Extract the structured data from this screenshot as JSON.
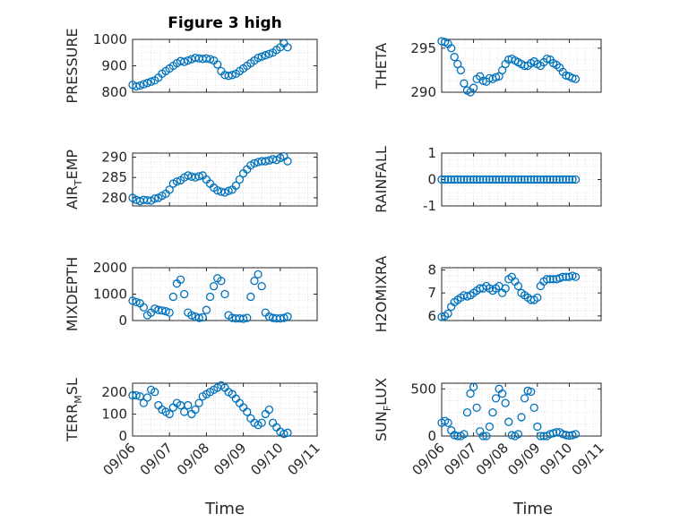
{
  "figure": {
    "title": "Figure 3 high",
    "xlabel": "Time",
    "marker_color": "#0072BD"
  },
  "chart_data": [
    {
      "type": "scatter",
      "ylabel": "PRESSURE",
      "ylim": [
        800,
        1000
      ],
      "yticks": [
        800,
        900,
        1000
      ],
      "xlim": [
        0,
        5
      ],
      "xticks": [
        "09/06",
        "09/07",
        "09/08",
        "09/09",
        "09/10",
        "09/11"
      ],
      "grid": true,
      "show_xticks": false,
      "x": [
        0,
        0.1,
        0.2,
        0.3,
        0.4,
        0.5,
        0.6,
        0.7,
        0.8,
        0.9,
        1.0,
        1.1,
        1.2,
        1.3,
        1.4,
        1.5,
        1.6,
        1.7,
        1.8,
        1.9,
        2.0,
        2.1,
        2.2,
        2.3,
        2.4,
        2.5,
        2.6,
        2.7,
        2.8,
        2.9,
        3.0,
        3.1,
        3.2,
        3.3,
        3.4,
        3.5,
        3.6,
        3.7,
        3.8,
        3.9,
        4.0,
        4.1,
        4.2
      ],
      "y": [
        828,
        822,
        825,
        830,
        835,
        840,
        845,
        855,
        870,
        880,
        890,
        900,
        910,
        918,
        915,
        920,
        925,
        930,
        928,
        926,
        928,
        925,
        920,
        905,
        880,
        865,
        862,
        865,
        870,
        880,
        890,
        900,
        910,
        920,
        930,
        935,
        940,
        945,
        950,
        960,
        970,
        985,
        970
      ]
    },
    {
      "type": "scatter",
      "ylabel": "THETA",
      "ylim": [
        290,
        296
      ],
      "yticks": [
        290,
        295
      ],
      "xlim": [
        0,
        5
      ],
      "xticks": [
        "09/06",
        "09/07",
        "09/08",
        "09/09",
        "09/10",
        "09/11"
      ],
      "grid": true,
      "show_xticks": false,
      "x": [
        0,
        0.1,
        0.2,
        0.3,
        0.4,
        0.5,
        0.6,
        0.7,
        0.8,
        0.9,
        1.0,
        1.1,
        1.2,
        1.3,
        1.4,
        1.5,
        1.6,
        1.7,
        1.8,
        1.9,
        2.0,
        2.1,
        2.2,
        2.3,
        2.4,
        2.5,
        2.6,
        2.7,
        2.8,
        2.9,
        3.0,
        3.1,
        3.2,
        3.3,
        3.4,
        3.5,
        3.6,
        3.7,
        3.8,
        3.9,
        4.0,
        4.1,
        4.2
      ],
      "y": [
        295.8,
        295.7,
        295.5,
        295.0,
        294.0,
        293.2,
        292.5,
        291.0,
        290.2,
        290.0,
        290.5,
        291.5,
        291.8,
        291.3,
        291.2,
        291.6,
        291.5,
        291.7,
        291.8,
        292.5,
        293.2,
        293.7,
        293.8,
        293.6,
        293.4,
        293.2,
        293.0,
        293.0,
        293.3,
        293.5,
        293.2,
        293.0,
        293.4,
        293.8,
        293.7,
        293.3,
        293.1,
        292.8,
        292.3,
        291.9,
        291.8,
        291.6,
        291.5
      ]
    },
    {
      "type": "scatter",
      "ylabel": "AIR_TEMP",
      "ylim": [
        278,
        291
      ],
      "yticks": [
        280,
        285,
        290
      ],
      "xlim": [
        0,
        5
      ],
      "xticks": [
        "09/06",
        "09/07",
        "09/08",
        "09/09",
        "09/10",
        "09/11"
      ],
      "grid": true,
      "show_xticks": false,
      "x": [
        0,
        0.1,
        0.2,
        0.3,
        0.4,
        0.5,
        0.6,
        0.7,
        0.8,
        0.9,
        1.0,
        1.1,
        1.2,
        1.3,
        1.4,
        1.5,
        1.6,
        1.7,
        1.8,
        1.9,
        2.0,
        2.1,
        2.2,
        2.3,
        2.4,
        2.5,
        2.6,
        2.7,
        2.8,
        2.9,
        3.0,
        3.1,
        3.2,
        3.3,
        3.4,
        3.5,
        3.6,
        3.7,
        3.8,
        3.9,
        4.0,
        4.1,
        4.2
      ],
      "y": [
        280.0,
        279.5,
        279.2,
        279.5,
        279.4,
        279.3,
        279.8,
        280.0,
        280.5,
        281.0,
        282.0,
        283.5,
        284.0,
        284.3,
        285.0,
        285.5,
        285.2,
        285.0,
        285.3,
        285.5,
        284.5,
        283.5,
        282.5,
        281.8,
        281.5,
        281.3,
        281.7,
        282.0,
        283.0,
        284.5,
        286.0,
        287.0,
        288.0,
        288.5,
        288.8,
        289.0,
        289.0,
        289.2,
        289.5,
        289.3,
        289.8,
        290.2,
        289.0
      ]
    },
    {
      "type": "scatter",
      "ylabel": "RAINFALL",
      "ylim": [
        -1,
        1
      ],
      "yticks": [
        -1,
        0,
        1
      ],
      "xlim": [
        0,
        5
      ],
      "xticks": [
        "09/06",
        "09/07",
        "09/08",
        "09/09",
        "09/10",
        "09/11"
      ],
      "grid": true,
      "show_xticks": false,
      "x": [
        0,
        0.1,
        0.2,
        0.3,
        0.4,
        0.5,
        0.6,
        0.7,
        0.8,
        0.9,
        1.0,
        1.1,
        1.2,
        1.3,
        1.4,
        1.5,
        1.6,
        1.7,
        1.8,
        1.9,
        2.0,
        2.1,
        2.2,
        2.3,
        2.4,
        2.5,
        2.6,
        2.7,
        2.8,
        2.9,
        3.0,
        3.1,
        3.2,
        3.3,
        3.4,
        3.5,
        3.6,
        3.7,
        3.8,
        3.9,
        4.0,
        4.1,
        4.2
      ],
      "y": [
        0,
        0,
        0,
        0,
        0,
        0,
        0,
        0,
        0,
        0,
        0,
        0,
        0,
        0,
        0,
        0,
        0,
        0,
        0,
        0,
        0,
        0,
        0,
        0,
        0,
        0,
        0,
        0,
        0,
        0,
        0,
        0,
        0,
        0,
        0,
        0,
        0,
        0,
        0,
        0,
        0,
        0,
        0
      ]
    },
    {
      "type": "scatter",
      "ylabel": "MIXDEPTH",
      "ylim": [
        0,
        2000
      ],
      "yticks": [
        0,
        1000,
        2000
      ],
      "xlim": [
        0,
        5
      ],
      "xticks": [
        "09/06",
        "09/07",
        "09/08",
        "09/09",
        "09/10",
        "09/11"
      ],
      "grid": true,
      "show_xticks": false,
      "x": [
        0,
        0.1,
        0.2,
        0.3,
        0.4,
        0.5,
        0.6,
        0.7,
        0.8,
        0.9,
        1.0,
        1.1,
        1.2,
        1.3,
        1.4,
        1.5,
        1.6,
        1.7,
        1.8,
        1.9,
        2.0,
        2.1,
        2.2,
        2.3,
        2.4,
        2.5,
        2.6,
        2.7,
        2.8,
        2.9,
        3.0,
        3.1,
        3.2,
        3.3,
        3.4,
        3.5,
        3.6,
        3.7,
        3.8,
        3.9,
        4.0,
        4.1,
        4.2
      ],
      "y": [
        750,
        700,
        650,
        500,
        200,
        300,
        450,
        400,
        380,
        350,
        300,
        900,
        1400,
        1550,
        1000,
        300,
        200,
        150,
        100,
        120,
        400,
        900,
        1300,
        1600,
        1500,
        1000,
        200,
        100,
        80,
        80,
        70,
        100,
        900,
        1500,
        1750,
        1300,
        300,
        150,
        100,
        80,
        80,
        100,
        150
      ]
    },
    {
      "type": "scatter",
      "ylabel": "H2OMIXRA",
      "ylim": [
        5.8,
        8.1
      ],
      "yticks": [
        6,
        7,
        8
      ],
      "xlim": [
        0,
        5
      ],
      "xticks": [
        "09/06",
        "09/07",
        "09/08",
        "09/09",
        "09/10",
        "09/11"
      ],
      "grid": true,
      "show_xticks": false,
      "x": [
        0,
        0.1,
        0.2,
        0.3,
        0.4,
        0.5,
        0.6,
        0.7,
        0.8,
        0.9,
        1.0,
        1.1,
        1.2,
        1.3,
        1.4,
        1.5,
        1.6,
        1.7,
        1.8,
        1.9,
        2.0,
        2.1,
        2.2,
        2.3,
        2.4,
        2.5,
        2.6,
        2.7,
        2.8,
        2.9,
        3.0,
        3.1,
        3.2,
        3.3,
        3.4,
        3.5,
        3.6,
        3.7,
        3.8,
        3.9,
        4.0,
        4.1,
        4.2
      ],
      "y": [
        5.95,
        6.0,
        6.1,
        6.4,
        6.6,
        6.7,
        6.8,
        6.9,
        6.85,
        6.9,
        7.0,
        7.1,
        7.2,
        7.2,
        7.3,
        7.2,
        7.1,
        7.2,
        7.3,
        7.0,
        7.2,
        7.6,
        7.7,
        7.5,
        7.3,
        7.0,
        6.9,
        6.8,
        6.7,
        6.7,
        6.8,
        7.3,
        7.5,
        7.6,
        7.6,
        7.6,
        7.6,
        7.65,
        7.7,
        7.7,
        7.7,
        7.75,
        7.7
      ]
    },
    {
      "type": "scatter",
      "ylabel": "TERR_MSL",
      "ylim": [
        0,
        240
      ],
      "yticks": [
        0,
        100,
        200
      ],
      "xlim": [
        0,
        5
      ],
      "xticks": [
        "09/06",
        "09/07",
        "09/08",
        "09/09",
        "09/10",
        "09/11"
      ],
      "grid": true,
      "show_xticks": true,
      "x": [
        0,
        0.1,
        0.2,
        0.3,
        0.4,
        0.5,
        0.6,
        0.7,
        0.8,
        0.9,
        1.0,
        1.1,
        1.2,
        1.3,
        1.4,
        1.5,
        1.6,
        1.7,
        1.8,
        1.9,
        2.0,
        2.1,
        2.2,
        2.3,
        2.4,
        2.5,
        2.6,
        2.7,
        2.8,
        2.9,
        3.0,
        3.1,
        3.2,
        3.3,
        3.4,
        3.5,
        3.6,
        3.7,
        3.8,
        3.9,
        4.0,
        4.1,
        4.2
      ],
      "y": [
        185,
        185,
        180,
        150,
        175,
        210,
        200,
        140,
        120,
        110,
        100,
        130,
        150,
        140,
        110,
        140,
        100,
        120,
        150,
        180,
        190,
        200,
        210,
        220,
        230,
        220,
        200,
        190,
        170,
        150,
        130,
        110,
        80,
        60,
        50,
        60,
        100,
        120,
        60,
        40,
        20,
        10,
        15
      ]
    },
    {
      "type": "scatter",
      "ylabel": "SUN_FLUX",
      "ylim": [
        0,
        560
      ],
      "yticks": [
        0,
        500
      ],
      "xlim": [
        0,
        5
      ],
      "xticks": [
        "09/06",
        "09/07",
        "09/08",
        "09/09",
        "09/10",
        "09/11"
      ],
      "grid": true,
      "show_xticks": true,
      "x": [
        0,
        0.1,
        0.2,
        0.3,
        0.4,
        0.5,
        0.6,
        0.7,
        0.8,
        0.9,
        1.0,
        1.1,
        1.2,
        1.3,
        1.4,
        1.5,
        1.6,
        1.7,
        1.8,
        1.9,
        2.0,
        2.1,
        2.2,
        2.3,
        2.4,
        2.5,
        2.6,
        2.7,
        2.8,
        2.9,
        3.0,
        3.1,
        3.2,
        3.3,
        3.4,
        3.5,
        3.6,
        3.7,
        3.8,
        3.9,
        4.0,
        4.1,
        4.2
      ],
      "y": [
        140,
        160,
        140,
        60,
        10,
        0,
        0,
        20,
        250,
        450,
        520,
        300,
        50,
        0,
        0,
        100,
        250,
        400,
        500,
        450,
        350,
        150,
        10,
        0,
        20,
        200,
        400,
        480,
        470,
        300,
        100,
        0,
        0,
        0,
        20,
        30,
        40,
        40,
        20,
        10,
        5,
        10,
        20
      ]
    }
  ]
}
